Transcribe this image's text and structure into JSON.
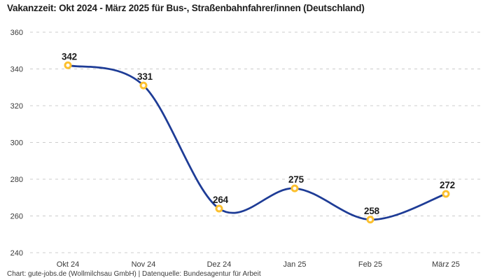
{
  "title": "Vakanzzeit: Okt 2024 - März 2025 für Bus-, Straßenbahnfahrer/innen (Deutschland)",
  "footer": "Chart: gute-jobs.de (Wollmilchsau GmbH) | Datenquelle: Bundesagentur für Arbeit",
  "chart_data": {
    "type": "line",
    "title": "Vakanzzeit: Okt 2024 - März 2025 für Bus-, Straßenbahnfahrer/innen (Deutschland)",
    "categories": [
      "Okt 24",
      "Nov 24",
      "Dez 24",
      "Jan 25",
      "Feb 25",
      "März 25"
    ],
    "values": [
      342,
      331,
      264,
      275,
      258,
      272
    ],
    "xlabel": "",
    "ylabel": "",
    "ylim": [
      240,
      360
    ],
    "yticks": [
      240,
      260,
      280,
      300,
      320,
      340,
      360
    ],
    "grid": "horizontal-dashed",
    "legend": "none",
    "data_labels": true,
    "colors": {
      "line": "#1e3c96",
      "marker_ring": "#fcc02e",
      "marker_fill": "#ffffff",
      "gridline": "#cccccc",
      "tick_text": "#3a3a3a",
      "data_label_text": "#1d1d1d"
    }
  }
}
